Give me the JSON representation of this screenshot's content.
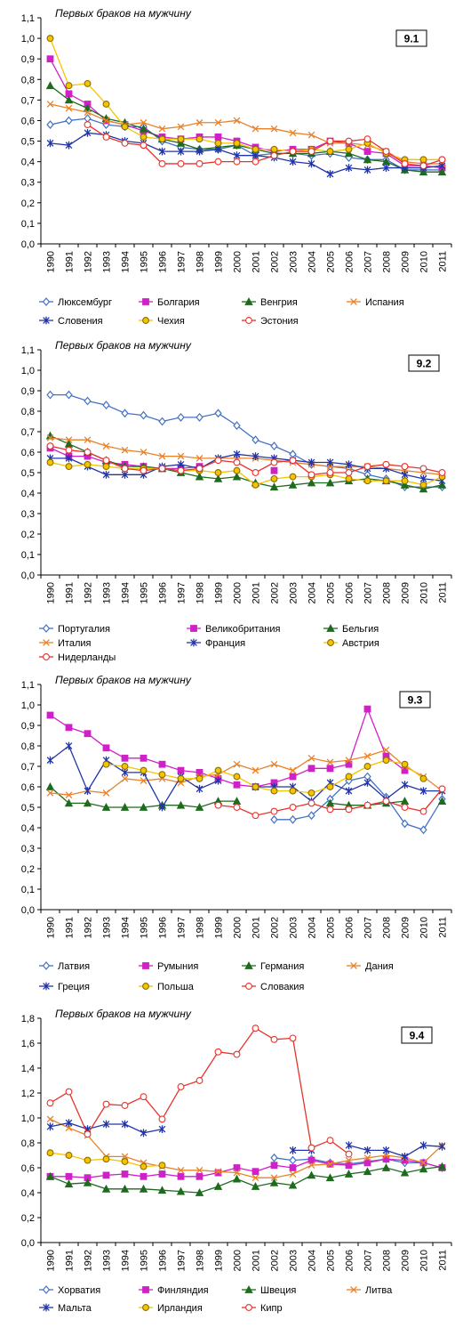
{
  "chart_data": [
    {
      "type": "line",
      "badge": "9.1",
      "ytitle": "Первых браков на мужчину",
      "ylim": [
        0,
        1.1
      ],
      "ytick_step": 0.1,
      "ytick_labels": [
        "0,0",
        "0,1",
        "0,2",
        "0,3",
        "0,4",
        "0,5",
        "0,6",
        "0,7",
        "0,8",
        "0,9",
        "1,0",
        "1,1"
      ],
      "categories": [
        "1990",
        "1991",
        "1992",
        "1993",
        "1994",
        "1995",
        "1996",
        "1997",
        "1998",
        "1999",
        "2000",
        "2001",
        "2002",
        "2003",
        "2004",
        "2005",
        "2006",
        "2007",
        "2008",
        "2009",
        "2010",
        "2011"
      ],
      "legend": "bottom",
      "series": [
        {
          "name": "Люксембург",
          "color": "#4472C4",
          "marker": "diamond",
          "values": [
            0.58,
            0.6,
            0.61,
            0.58,
            0.57,
            0.57,
            0.5,
            0.47,
            0.46,
            0.46,
            0.48,
            0.43,
            0.44,
            0.44,
            0.43,
            0.44,
            0.42,
            0.41,
            0.41,
            0.36,
            0.36,
            0.36
          ]
        },
        {
          "name": "Болгария",
          "color": "#D020C8",
          "marker": "square",
          "values": [
            0.9,
            0.73,
            0.68,
            0.6,
            0.58,
            0.55,
            0.52,
            0.51,
            0.52,
            0.52,
            0.5,
            0.47,
            0.45,
            0.46,
            0.46,
            0.5,
            0.49,
            0.45,
            0.44,
            0.38,
            0.38,
            0.37
          ]
        },
        {
          "name": "Венгрия",
          "color": "#1E6B1E",
          "marker": "triangle",
          "values": [
            0.77,
            0.7,
            0.66,
            0.61,
            0.59,
            0.56,
            0.51,
            0.49,
            0.46,
            0.47,
            0.48,
            0.46,
            0.44,
            0.44,
            0.44,
            0.45,
            0.44,
            0.41,
            0.4,
            0.36,
            0.35,
            0.35
          ]
        },
        {
          "name": "Испания",
          "color": "#E8822B",
          "marker": "x",
          "values": [
            0.68,
            0.66,
            0.64,
            0.6,
            0.58,
            0.59,
            0.56,
            0.57,
            0.59,
            0.59,
            0.6,
            0.56,
            0.56,
            0.54,
            0.53,
            0.49,
            0.49,
            0.48,
            0.45,
            0.4,
            0.39,
            0.39
          ]
        },
        {
          "name": "Словения",
          "color": "#2235A8",
          "marker": "star",
          "values": [
            0.49,
            0.48,
            0.54,
            0.53,
            0.5,
            0.49,
            0.45,
            0.45,
            0.45,
            0.46,
            0.43,
            0.43,
            0.42,
            0.4,
            0.39,
            0.34,
            0.37,
            0.36,
            0.37,
            0.37,
            0.37,
            0.38
          ]
        },
        {
          "name": "Чехия",
          "color": "#F5C400",
          "marker": "circle",
          "values": [
            1.0,
            0.77,
            0.78,
            0.68,
            0.57,
            0.52,
            0.51,
            0.51,
            0.51,
            0.49,
            0.49,
            0.46,
            0.46,
            0.45,
            0.46,
            0.45,
            0.46,
            0.49,
            0.44,
            0.41,
            0.41,
            0.41
          ]
        },
        {
          "name": "Эстония",
          "color": "#E8322B",
          "marker": "circle",
          "values": [
            null,
            null,
            0.58,
            0.52,
            0.49,
            0.48,
            0.39,
            0.39,
            0.39,
            0.4,
            0.4,
            0.4,
            0.43,
            0.45,
            0.45,
            0.5,
            0.5,
            0.51,
            0.45,
            0.39,
            0.38,
            0.41
          ]
        }
      ]
    },
    {
      "type": "line",
      "badge": "9.2",
      "ytitle": "Первых браков на мужчину",
      "ylim": [
        0,
        1.1
      ],
      "ytick_step": 0.1,
      "ytick_labels": [
        "0,0",
        "0,1",
        "0,2",
        "0,3",
        "0,4",
        "0,5",
        "0,6",
        "0,7",
        "0,8",
        "0,9",
        "1,0",
        "1,1"
      ],
      "categories": [
        "1990",
        "1991",
        "1992",
        "1993",
        "1994",
        "1995",
        "1996",
        "1997",
        "1998",
        "1999",
        "2000",
        "2001",
        "2002",
        "2003",
        "2004",
        "2005",
        "2006",
        "2007",
        "2008",
        "2009",
        "2010",
        "2011"
      ],
      "legend": "bottom",
      "series": [
        {
          "name": "Португалия",
          "color": "#4472C4",
          "marker": "diamond",
          "values": [
            0.88,
            0.88,
            0.85,
            0.83,
            0.79,
            0.78,
            0.75,
            0.77,
            0.77,
            0.79,
            0.73,
            0.66,
            0.63,
            0.59,
            0.54,
            0.53,
            0.52,
            0.49,
            0.47,
            0.43,
            0.43,
            0.43
          ]
        },
        {
          "name": "Великобритания",
          "color": "#D020C8",
          "marker": "square",
          "values": [
            0.62,
            0.58,
            0.58,
            0.55,
            0.54,
            0.53,
            0.52,
            0.52,
            0.53,
            null,
            null,
            null,
            0.51,
            null,
            null,
            null,
            null,
            null,
            null,
            null,
            null,
            null
          ]
        },
        {
          "name": "Бельгия",
          "color": "#1E6B1E",
          "marker": "triangle",
          "values": [
            0.68,
            0.64,
            0.6,
            0.56,
            0.53,
            0.53,
            0.52,
            0.5,
            0.48,
            0.47,
            0.48,
            0.45,
            0.43,
            0.44,
            0.45,
            0.45,
            0.46,
            0.47,
            0.46,
            0.44,
            0.42,
            0.44
          ]
        },
        {
          "name": "Италия",
          "color": "#E8822B",
          "marker": "x",
          "values": [
            0.67,
            0.66,
            0.66,
            0.63,
            0.61,
            0.6,
            0.58,
            0.58,
            0.57,
            0.57,
            0.57,
            0.57,
            0.56,
            0.55,
            0.54,
            0.53,
            0.53,
            0.53,
            0.52,
            0.51,
            0.5,
            0.49
          ]
        },
        {
          "name": "Франция",
          "color": "#2235A8",
          "marker": "star",
          "values": [
            0.57,
            0.57,
            0.53,
            0.49,
            0.49,
            0.49,
            0.53,
            0.54,
            0.52,
            0.57,
            0.59,
            0.58,
            0.57,
            0.56,
            0.55,
            0.55,
            0.54,
            0.52,
            0.52,
            0.49,
            0.47,
            0.46
          ]
        },
        {
          "name": "Австрия",
          "color": "#F5C400",
          "marker": "circle",
          "values": [
            0.55,
            0.53,
            0.54,
            0.53,
            0.52,
            0.52,
            0.52,
            0.51,
            0.51,
            0.5,
            0.51,
            0.44,
            0.47,
            0.48,
            0.48,
            0.49,
            0.47,
            0.46,
            0.46,
            0.46,
            0.44,
            0.48
          ]
        },
        {
          "name": "Нидерланды",
          "color": "#E8322B",
          "marker": "circle",
          "values": [
            0.63,
            0.61,
            0.6,
            0.56,
            0.52,
            0.51,
            0.52,
            0.51,
            0.52,
            0.56,
            0.55,
            0.5,
            0.55,
            0.56,
            0.49,
            0.5,
            0.5,
            0.53,
            0.54,
            0.53,
            0.52,
            0.5
          ]
        }
      ]
    },
    {
      "type": "line",
      "badge": "9.3",
      "ytitle": "Первых браков на мужчину",
      "ylim": [
        0,
        1.1
      ],
      "ytick_step": 0.1,
      "ytick_labels": [
        "0,0",
        "0,1",
        "0,2",
        "0,3",
        "0,4",
        "0,5",
        "0,6",
        "0,7",
        "0,8",
        "0,9",
        "1,0",
        "1,1"
      ],
      "categories": [
        "1990",
        "1991",
        "1992",
        "1993",
        "1994",
        "1995",
        "1996",
        "1997",
        "1998",
        "1999",
        "2000",
        "2001",
        "2002",
        "2003",
        "2004",
        "2005",
        "2006",
        "2007",
        "2008",
        "2009",
        "2010",
        "2011"
      ],
      "legend": "bottom",
      "series": [
        {
          "name": "Латвия",
          "color": "#4472C4",
          "marker": "diamond",
          "values": [
            null,
            null,
            null,
            null,
            null,
            null,
            null,
            null,
            null,
            null,
            null,
            null,
            0.44,
            0.44,
            0.46,
            0.54,
            0.63,
            0.65,
            0.55,
            0.42,
            0.39,
            0.54
          ]
        },
        {
          "name": "Румыния",
          "color": "#D020C8",
          "marker": "square",
          "values": [
            0.95,
            0.89,
            0.86,
            0.79,
            0.74,
            0.74,
            0.71,
            0.68,
            0.67,
            0.64,
            0.61,
            0.6,
            0.62,
            0.65,
            0.69,
            0.69,
            0.71,
            0.98,
            0.75,
            0.68,
            null,
            null
          ]
        },
        {
          "name": "Германия",
          "color": "#1E6B1E",
          "marker": "triangle",
          "values": [
            0.6,
            0.52,
            0.52,
            0.5,
            0.5,
            0.5,
            0.51,
            0.51,
            0.5,
            0.53,
            0.53,
            null,
            null,
            null,
            null,
            0.52,
            0.51,
            0.51,
            0.52,
            0.53,
            null,
            0.53
          ]
        },
        {
          "name": "Дания",
          "color": "#E8822B",
          "marker": "x",
          "values": [
            0.57,
            0.56,
            0.58,
            0.57,
            0.64,
            0.63,
            0.64,
            0.62,
            0.65,
            0.66,
            0.71,
            0.68,
            0.71,
            0.68,
            0.74,
            0.72,
            0.73,
            0.75,
            0.78,
            0.7,
            0.65,
            0.58
          ]
        },
        {
          "name": "Греция",
          "color": "#2235A8",
          "marker": "star",
          "values": [
            0.73,
            0.8,
            0.58,
            0.73,
            0.67,
            0.67,
            0.5,
            0.65,
            0.59,
            0.63,
            null,
            0.6,
            0.6,
            0.6,
            0.53,
            0.62,
            0.58,
            0.62,
            0.54,
            0.61,
            0.58,
            0.58
          ]
        },
        {
          "name": "Польша",
          "color": "#F5C400",
          "marker": "circle",
          "values": [
            null,
            null,
            null,
            0.71,
            0.7,
            0.68,
            0.66,
            0.64,
            0.64,
            0.68,
            0.65,
            0.6,
            0.58,
            0.58,
            0.57,
            0.6,
            0.65,
            0.7,
            0.73,
            0.71,
            0.64,
            null
          ]
        },
        {
          "name": "Словакия",
          "color": "#E8322B",
          "marker": "circle",
          "values": [
            null,
            null,
            null,
            null,
            null,
            null,
            null,
            null,
            null,
            0.51,
            0.5,
            0.46,
            0.48,
            0.5,
            0.52,
            0.49,
            0.49,
            0.51,
            0.53,
            0.5,
            0.48,
            0.59
          ]
        }
      ]
    },
    {
      "type": "line",
      "badge": "9.4",
      "ytitle": "Первых браков на мужчину",
      "ylim": [
        0,
        1.8
      ],
      "ytick_step": 0.2,
      "ytick_labels": [
        "0,0",
        "0,2",
        "0,4",
        "0,6",
        "0,8",
        "1,0",
        "1,2",
        "1,4",
        "1,6",
        "1,8"
      ],
      "categories": [
        "1990",
        "1991",
        "1992",
        "1993",
        "1994",
        "1995",
        "1996",
        "1997",
        "1998",
        "1999",
        "2000",
        "2001",
        "2002",
        "2003",
        "2004",
        "2005",
        "2006",
        "2007",
        "2008",
        "2009",
        "2010",
        "2011"
      ],
      "legend": "bottom",
      "series": [
        {
          "name": "Хорватия",
          "color": "#4472C4",
          "marker": "diamond",
          "values": [
            null,
            null,
            null,
            null,
            null,
            null,
            null,
            null,
            null,
            null,
            null,
            null,
            0.68,
            0.66,
            0.67,
            0.64,
            0.63,
            0.65,
            0.67,
            0.64,
            0.64,
            0.6
          ]
        },
        {
          "name": "Финляндия",
          "color": "#D020C8",
          "marker": "square",
          "values": [
            0.53,
            0.53,
            0.52,
            0.54,
            0.55,
            0.53,
            0.55,
            0.53,
            0.53,
            0.56,
            0.6,
            0.57,
            0.62,
            0.6,
            0.66,
            0.63,
            0.62,
            0.64,
            0.67,
            0.66,
            0.64,
            0.6
          ]
        },
        {
          "name": "Швеция",
          "color": "#1E6B1E",
          "marker": "triangle",
          "values": [
            0.53,
            0.47,
            0.48,
            0.43,
            0.43,
            0.43,
            0.42,
            0.41,
            0.4,
            0.45,
            0.51,
            0.45,
            0.48,
            0.46,
            0.54,
            0.52,
            0.55,
            0.57,
            0.6,
            0.56,
            0.59,
            0.61
          ]
        },
        {
          "name": "Литва",
          "color": "#E8822B",
          "marker": "x",
          "values": [
            0.99,
            0.92,
            0.86,
            0.69,
            0.69,
            0.64,
            0.61,
            0.58,
            0.58,
            0.57,
            0.56,
            0.52,
            0.52,
            0.55,
            0.62,
            0.63,
            0.66,
            0.68,
            0.7,
            0.68,
            0.64,
            0.78
          ]
        },
        {
          "name": "Мальта",
          "color": "#2235A8",
          "marker": "star",
          "values": [
            0.93,
            0.96,
            0.91,
            0.95,
            0.95,
            0.88,
            0.91,
            null,
            null,
            null,
            null,
            null,
            null,
            0.74,
            0.74,
            null,
            0.78,
            0.74,
            0.74,
            0.69,
            0.78,
            0.77
          ]
        },
        {
          "name": "Ирландия",
          "color": "#F5C400",
          "marker": "circle",
          "values": [
            0.72,
            0.7,
            0.66,
            0.67,
            0.65,
            0.61,
            0.62,
            null,
            null,
            null,
            null,
            null,
            null,
            null,
            null,
            null,
            null,
            null,
            null,
            null,
            null,
            null
          ]
        },
        {
          "name": "Кипр",
          "color": "#E8322B",
          "marker": "circle",
          "values": [
            1.12,
            1.21,
            0.87,
            1.11,
            1.1,
            1.17,
            0.99,
            1.25,
            1.3,
            1.53,
            1.51,
            1.72,
            1.63,
            1.64,
            0.76,
            0.82,
            0.71,
            null,
            null,
            null,
            null,
            null
          ]
        }
      ]
    }
  ]
}
